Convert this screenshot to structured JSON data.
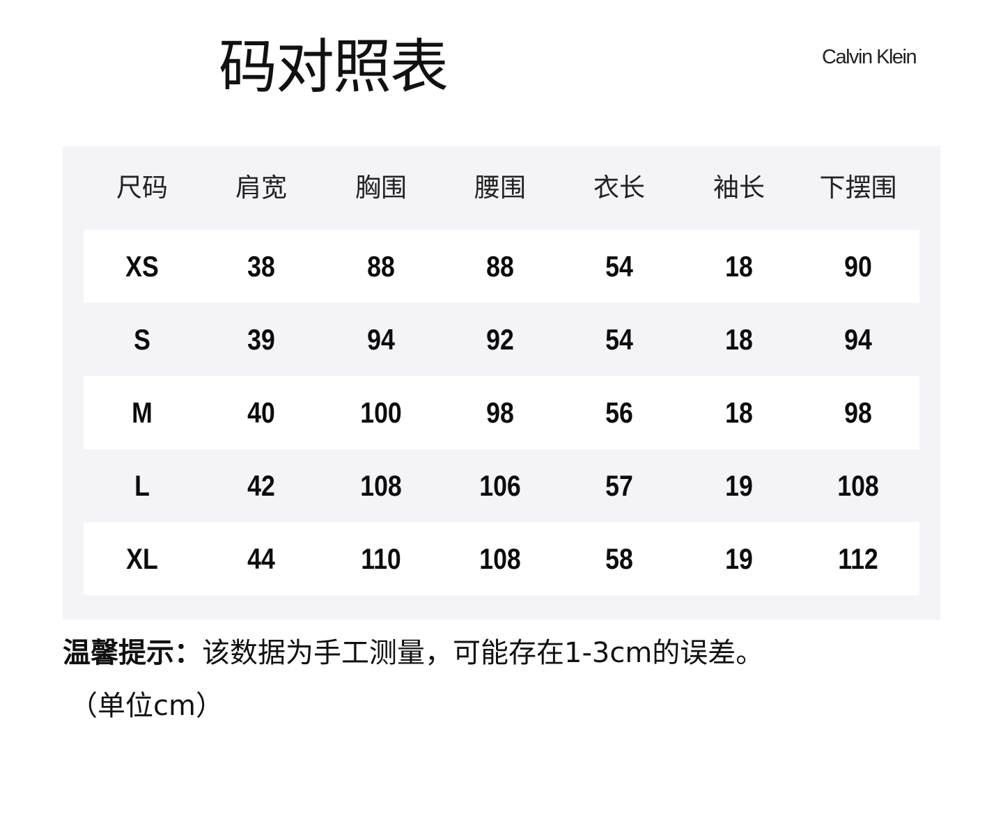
{
  "title": "码对照表",
  "brand": "Calvin Klein",
  "colors": {
    "panel_bg": "#f3f3f8",
    "row_white": "#ffffff",
    "text": "#111111"
  },
  "table": {
    "headers": [
      "尺码",
      "肩宽",
      "胸围",
      "腰围",
      "衣长",
      "袖长",
      "下摆围"
    ],
    "rows": [
      [
        "XS",
        "38",
        "88",
        "88",
        "54",
        "18",
        "90"
      ],
      [
        "S",
        "39",
        "94",
        "92",
        "54",
        "18",
        "94"
      ],
      [
        "M",
        "40",
        "100",
        "98",
        "56",
        "18",
        "98"
      ],
      [
        "L",
        "42",
        "108",
        "106",
        "57",
        "19",
        "108"
      ],
      [
        "XL",
        "44",
        "110",
        "108",
        "58",
        "19",
        "112"
      ]
    ]
  },
  "note": {
    "label": "温馨提示：",
    "text": "该数据为手工测量，可能存在1-3cm的误差。",
    "unit": "（单位cm）"
  }
}
